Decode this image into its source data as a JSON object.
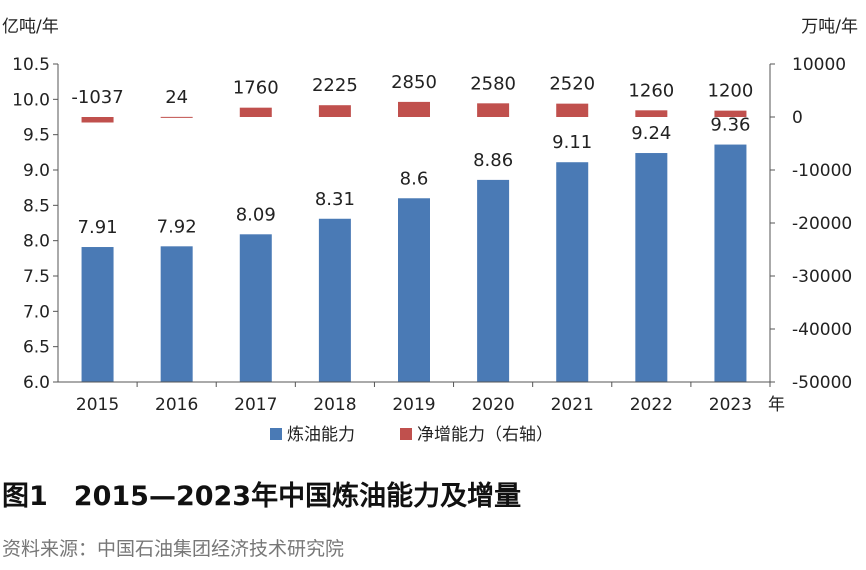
{
  "chart_data": {
    "type": "bar",
    "categories": [
      "2015",
      "2016",
      "2017",
      "2018",
      "2019",
      "2020",
      "2021",
      "2022",
      "2023"
    ],
    "x_unit": "年",
    "left_axis": {
      "unit": "亿吨/年",
      "ylim": [
        6.0,
        10.5
      ],
      "ticks": [
        "6.0",
        "6.5",
        "7.0",
        "7.5",
        "8.0",
        "8.5",
        "9.0",
        "9.5",
        "10.0",
        "10.5"
      ]
    },
    "right_axis": {
      "unit": "万吨/年",
      "ylim": [
        -50000,
        10000
      ],
      "ticks": [
        "10000",
        "0",
        "-10000",
        "-20000",
        "-30000",
        "-40000",
        "-50000"
      ]
    },
    "series": [
      {
        "name": "炼油能力",
        "axis": "left",
        "color": "#4a7ab5",
        "values": [
          7.91,
          7.92,
          8.09,
          8.31,
          8.6,
          8.86,
          9.11,
          9.24,
          9.36
        ],
        "labels": [
          "7.91",
          "7.92",
          "8.09",
          "8.31",
          "8.6",
          "8.86",
          "9.11",
          "9.24",
          "9.36"
        ]
      },
      {
        "name": "净增能力（右轴）",
        "axis": "right",
        "color": "#c0504d",
        "values": [
          -1037,
          24,
          1760,
          2225,
          2850,
          2580,
          2520,
          1260,
          1200
        ],
        "labels": [
          "-1037",
          "24",
          "1760",
          "2225",
          "2850",
          "2580",
          "2520",
          "1260",
          "1200"
        ]
      }
    ],
    "grid": false,
    "legend": "bottom-center"
  },
  "caption": {
    "figure_no": "图1",
    "title": "2015—2023年中国炼油能力及增量"
  },
  "source": "资料来源：中国石油集团经济技术研究院"
}
